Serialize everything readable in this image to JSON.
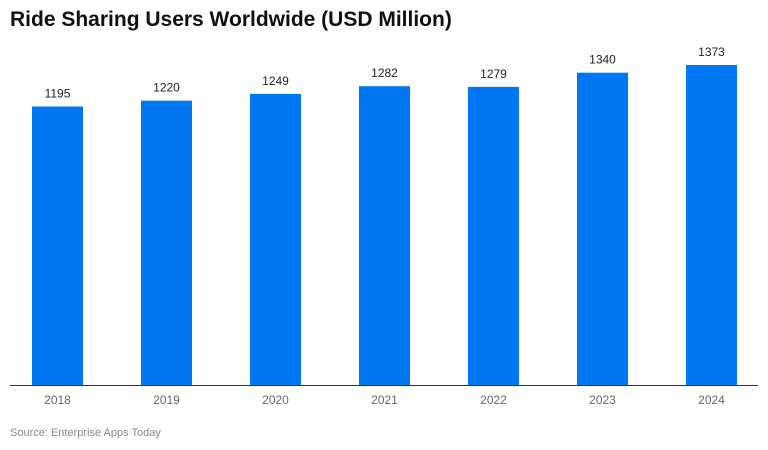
{
  "chart_data": {
    "type": "bar",
    "title": "Ride Sharing Users Worldwide (USD Million)",
    "categories": [
      "2018",
      "2019",
      "2020",
      "2021",
      "2022",
      "2023",
      "2024"
    ],
    "values": [
      1195,
      1220,
      1249,
      1282,
      1279,
      1340,
      1373
    ],
    "xlabel": "",
    "ylabel": "",
    "ylim": [
      0,
      1400
    ],
    "grid": false,
    "bar_color": "#0077F2",
    "source": "Source: Enterprise Apps Today"
  }
}
